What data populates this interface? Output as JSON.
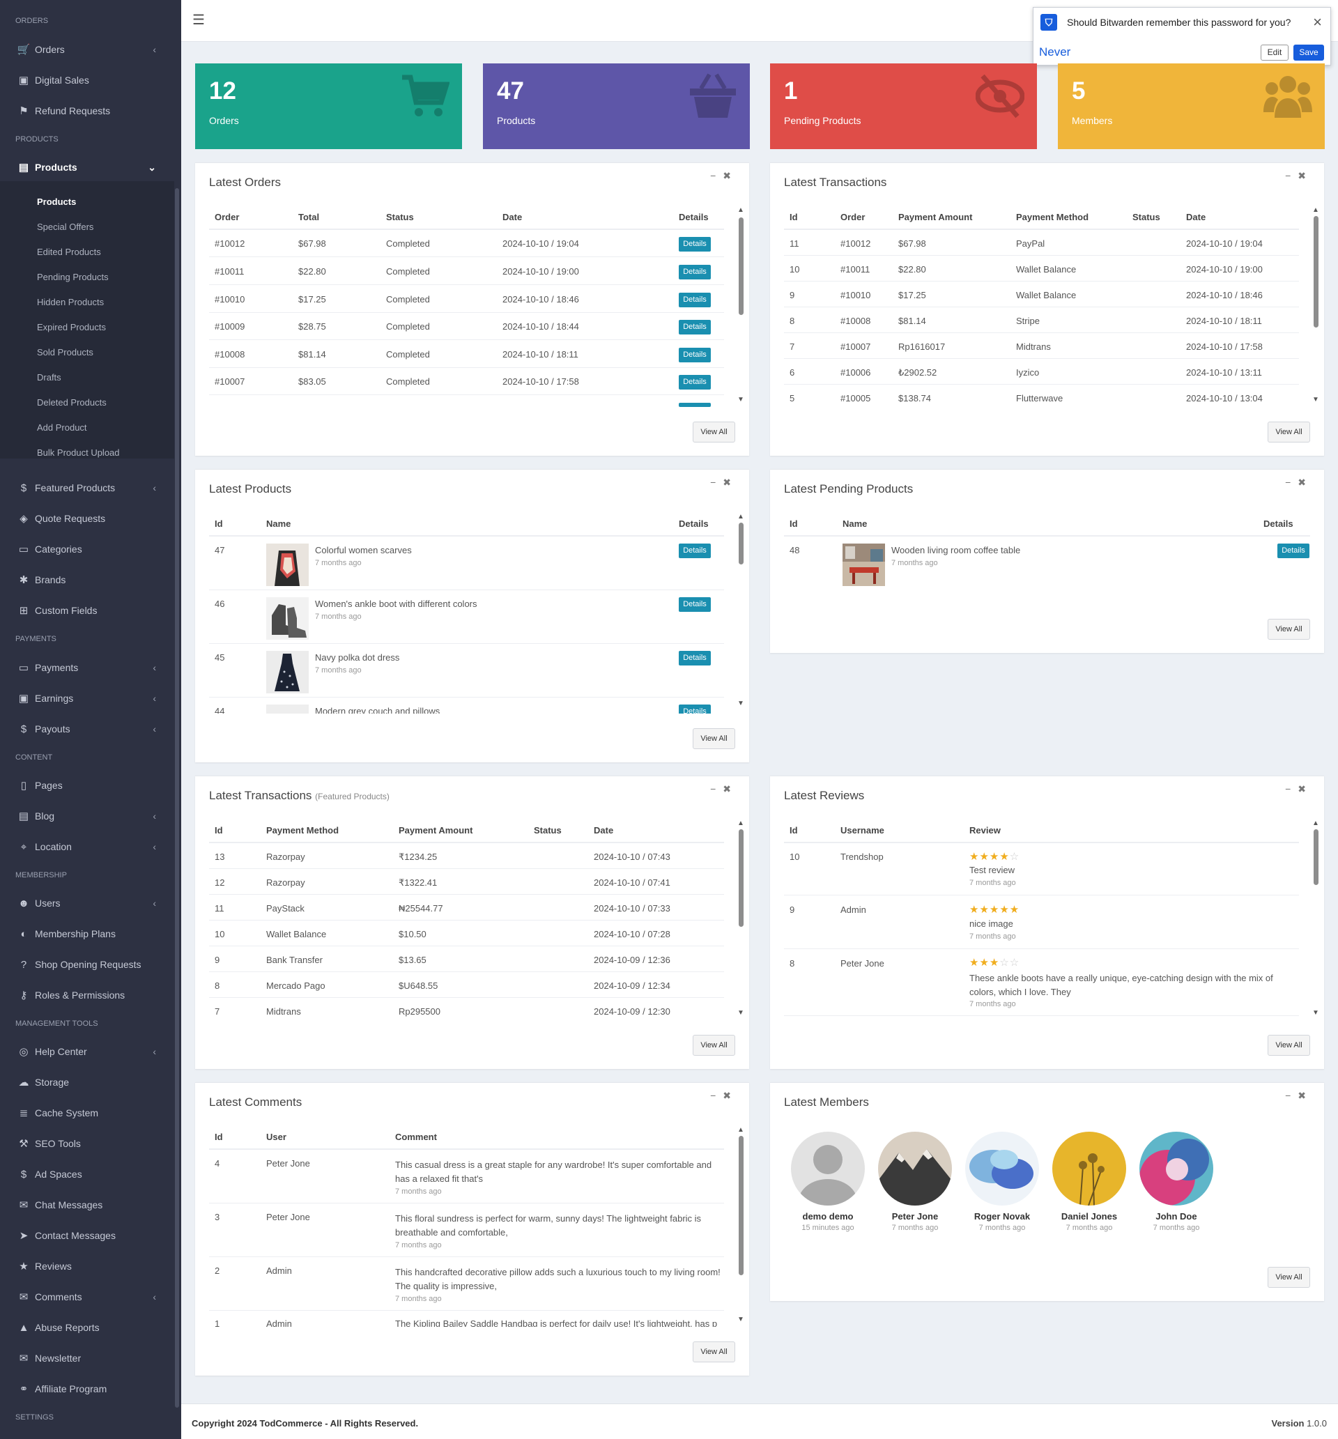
{
  "sidebar": {
    "sections": {
      "orders": "ORDERS",
      "products": "PRODUCTS",
      "payments": "PAYMENTS",
      "content": "CONTENT",
      "membership": "MEMBERSHIP",
      "management": "MANAGEMENT TOOLS",
      "settings": "SETTINGS"
    },
    "items": {
      "orders": "Orders",
      "digital_sales": "Digital Sales",
      "refund_requests": "Refund Requests",
      "products": "Products",
      "featured_products": "Featured Products",
      "quote_requests": "Quote Requests",
      "categories": "Categories",
      "brands": "Brands",
      "custom_fields": "Custom Fields",
      "payments": "Payments",
      "earnings": "Earnings",
      "payouts": "Payouts",
      "pages": "Pages",
      "blog": "Blog",
      "location": "Location",
      "users": "Users",
      "membership_plans": "Membership Plans",
      "shop_opening_requests": "Shop Opening Requests",
      "roles_permissions": "Roles & Permissions",
      "help_center": "Help Center",
      "storage": "Storage",
      "cache_system": "Cache System",
      "seo_tools": "SEO Tools",
      "ad_spaces": "Ad Spaces",
      "chat_messages": "Chat Messages",
      "contact_messages": "Contact Messages",
      "reviews": "Reviews",
      "comments": "Comments",
      "abuse_reports": "Abuse Reports",
      "newsletter": "Newsletter",
      "affiliate_program": "Affiliate Program"
    },
    "product_sub": [
      "Products",
      "Special Offers",
      "Edited Products",
      "Pending Products",
      "Hidden Products",
      "Expired Products",
      "Sold Products",
      "Drafts",
      "Deleted Products",
      "Add Product",
      "Bulk Product Upload"
    ]
  },
  "bitwarden": {
    "message": "Should Bitwarden remember this password for you?",
    "never": "Never",
    "edit": "Edit",
    "save": "Save"
  },
  "stats": [
    {
      "num": "12",
      "label": "Orders",
      "color": "#1aa38b"
    },
    {
      "num": "47",
      "label": "Products",
      "color": "#5e56a8"
    },
    {
      "num": "1",
      "label": "Pending Products",
      "color": "#df4d48"
    },
    {
      "num": "5",
      "label": "Members",
      "color": "#f0b53a"
    }
  ],
  "common": {
    "details": "Details",
    "view_all": "View All"
  },
  "latest_orders": {
    "title": "Latest Orders",
    "headers": [
      "Order",
      "Total",
      "Status",
      "Date",
      "Details"
    ],
    "rows": [
      [
        "#10012",
        "$67.98",
        "Completed",
        "2024-10-10 / 19:04"
      ],
      [
        "#10011",
        "$22.80",
        "Completed",
        "2024-10-10 / 19:00"
      ],
      [
        "#10010",
        "$17.25",
        "Completed",
        "2024-10-10 / 18:46"
      ],
      [
        "#10009",
        "$28.75",
        "Completed",
        "2024-10-10 / 18:44"
      ],
      [
        "#10008",
        "$81.14",
        "Completed",
        "2024-10-10 / 18:11"
      ],
      [
        "#10007",
        "$83.05",
        "Completed",
        "2024-10-10 / 17:58"
      ]
    ]
  },
  "latest_transactions": {
    "title": "Latest Transactions",
    "headers": [
      "Id",
      "Order",
      "Payment Amount",
      "Payment Method",
      "Status",
      "Date"
    ],
    "rows": [
      [
        "11",
        "#10012",
        "$67.98",
        "PayPal",
        "2024-10-10 / 19:04"
      ],
      [
        "10",
        "#10011",
        "$22.80",
        "Wallet Balance",
        "2024-10-10 / 19:00"
      ],
      [
        "9",
        "#10010",
        "$17.25",
        "Wallet Balance",
        "2024-10-10 / 18:46"
      ],
      [
        "8",
        "#10008",
        "$81.14",
        "Stripe",
        "2024-10-10 / 18:11"
      ],
      [
        "7",
        "#10007",
        "Rp1616017",
        "Midtrans",
        "2024-10-10 / 17:58"
      ],
      [
        "6",
        "#10006",
        "₺2902.52",
        "Iyzico",
        "2024-10-10 / 13:11"
      ],
      [
        "5",
        "#10005",
        "$138.74",
        "Flutterwave",
        "2024-10-10 / 13:04"
      ]
    ]
  },
  "latest_products": {
    "title": "Latest Products",
    "headers": [
      "Id",
      "Name",
      "Details"
    ],
    "rows": [
      {
        "id": "47",
        "name": "Colorful women scarves",
        "time": "7 months ago"
      },
      {
        "id": "46",
        "name": "Women's ankle boot with different colors",
        "time": "7 months ago"
      },
      {
        "id": "45",
        "name": "Navy polka dot dress",
        "time": "7 months ago"
      },
      {
        "id": "44",
        "name": "Modern grey couch and pillows",
        "time": ""
      }
    ]
  },
  "latest_pending": {
    "title": "Latest Pending Products",
    "headers": [
      "Id",
      "Name",
      "Details"
    ],
    "rows": [
      {
        "id": "48",
        "name": "Wooden living room coffee table",
        "time": "7 months ago"
      }
    ]
  },
  "featured_transactions": {
    "title": "Latest Transactions",
    "subtitle": "(Featured Products)",
    "headers": [
      "Id",
      "Payment Method",
      "Payment Amount",
      "Status",
      "Date"
    ],
    "rows": [
      [
        "13",
        "Razorpay",
        "₹1234.25",
        "2024-10-10 / 07:43"
      ],
      [
        "12",
        "Razorpay",
        "₹1322.41",
        "2024-10-10 / 07:41"
      ],
      [
        "11",
        "PayStack",
        "₦25544.77",
        "2024-10-10 / 07:33"
      ],
      [
        "10",
        "Wallet Balance",
        "$10.50",
        "2024-10-10 / 07:28"
      ],
      [
        "9",
        "Bank Transfer",
        "$13.65",
        "2024-10-09 / 12:36"
      ],
      [
        "8",
        "Mercado Pago",
        "$U648.55",
        "2024-10-09 / 12:34"
      ],
      [
        "7",
        "Midtrans",
        "Rp295500",
        "2024-10-09 / 12:30"
      ]
    ]
  },
  "latest_reviews": {
    "title": "Latest Reviews",
    "headers": [
      "Id",
      "Username",
      "Review"
    ],
    "rows": [
      {
        "id": "10",
        "user": "Trendshop",
        "rating": 4,
        "text": "Test review",
        "time": "7 months ago"
      },
      {
        "id": "9",
        "user": "Admin",
        "rating": 5,
        "text": "nice image",
        "time": "7 months ago"
      },
      {
        "id": "8",
        "user": "Peter Jone",
        "rating": 3,
        "text": "These ankle boots have a really unique, eye-catching design with the mix of colors, which I love. They",
        "time": "7 months ago"
      }
    ]
  },
  "latest_comments": {
    "title": "Latest Comments",
    "headers": [
      "Id",
      "User",
      "Comment"
    ],
    "rows": [
      {
        "id": "4",
        "user": "Peter Jone",
        "text": "This casual dress is a great staple for any wardrobe! It's super comfortable and has a relaxed fit that's",
        "time": "7 months ago"
      },
      {
        "id": "3",
        "user": "Peter Jone",
        "text": "This floral sundress is perfect for warm, sunny days! The lightweight fabric is breathable and comfortable,",
        "time": "7 months ago"
      },
      {
        "id": "2",
        "user": "Admin",
        "text": "This handcrafted decorative pillow adds such a luxurious touch to my living room! The quality is impressive,",
        "time": "7 months ago"
      },
      {
        "id": "1",
        "user": "Admin",
        "text": "The Kipling Bailey Saddle Handbag is perfect for daily use! It's lightweight, has p",
        "time": ""
      }
    ]
  },
  "latest_members": {
    "title": "Latest Members",
    "members": [
      {
        "name": "demo demo",
        "time": "15 minutes ago"
      },
      {
        "name": "Peter Jone",
        "time": "7 months ago"
      },
      {
        "name": "Roger Novak",
        "time": "7 months ago"
      },
      {
        "name": "Daniel Jones",
        "time": "7 months ago"
      },
      {
        "name": "John Doe",
        "time": "7 months ago"
      }
    ]
  },
  "footer": {
    "copyright": "Copyright 2024 TodCommerce - All Rights Reserved.",
    "version_label": "Version",
    "version": "1.0.0"
  }
}
